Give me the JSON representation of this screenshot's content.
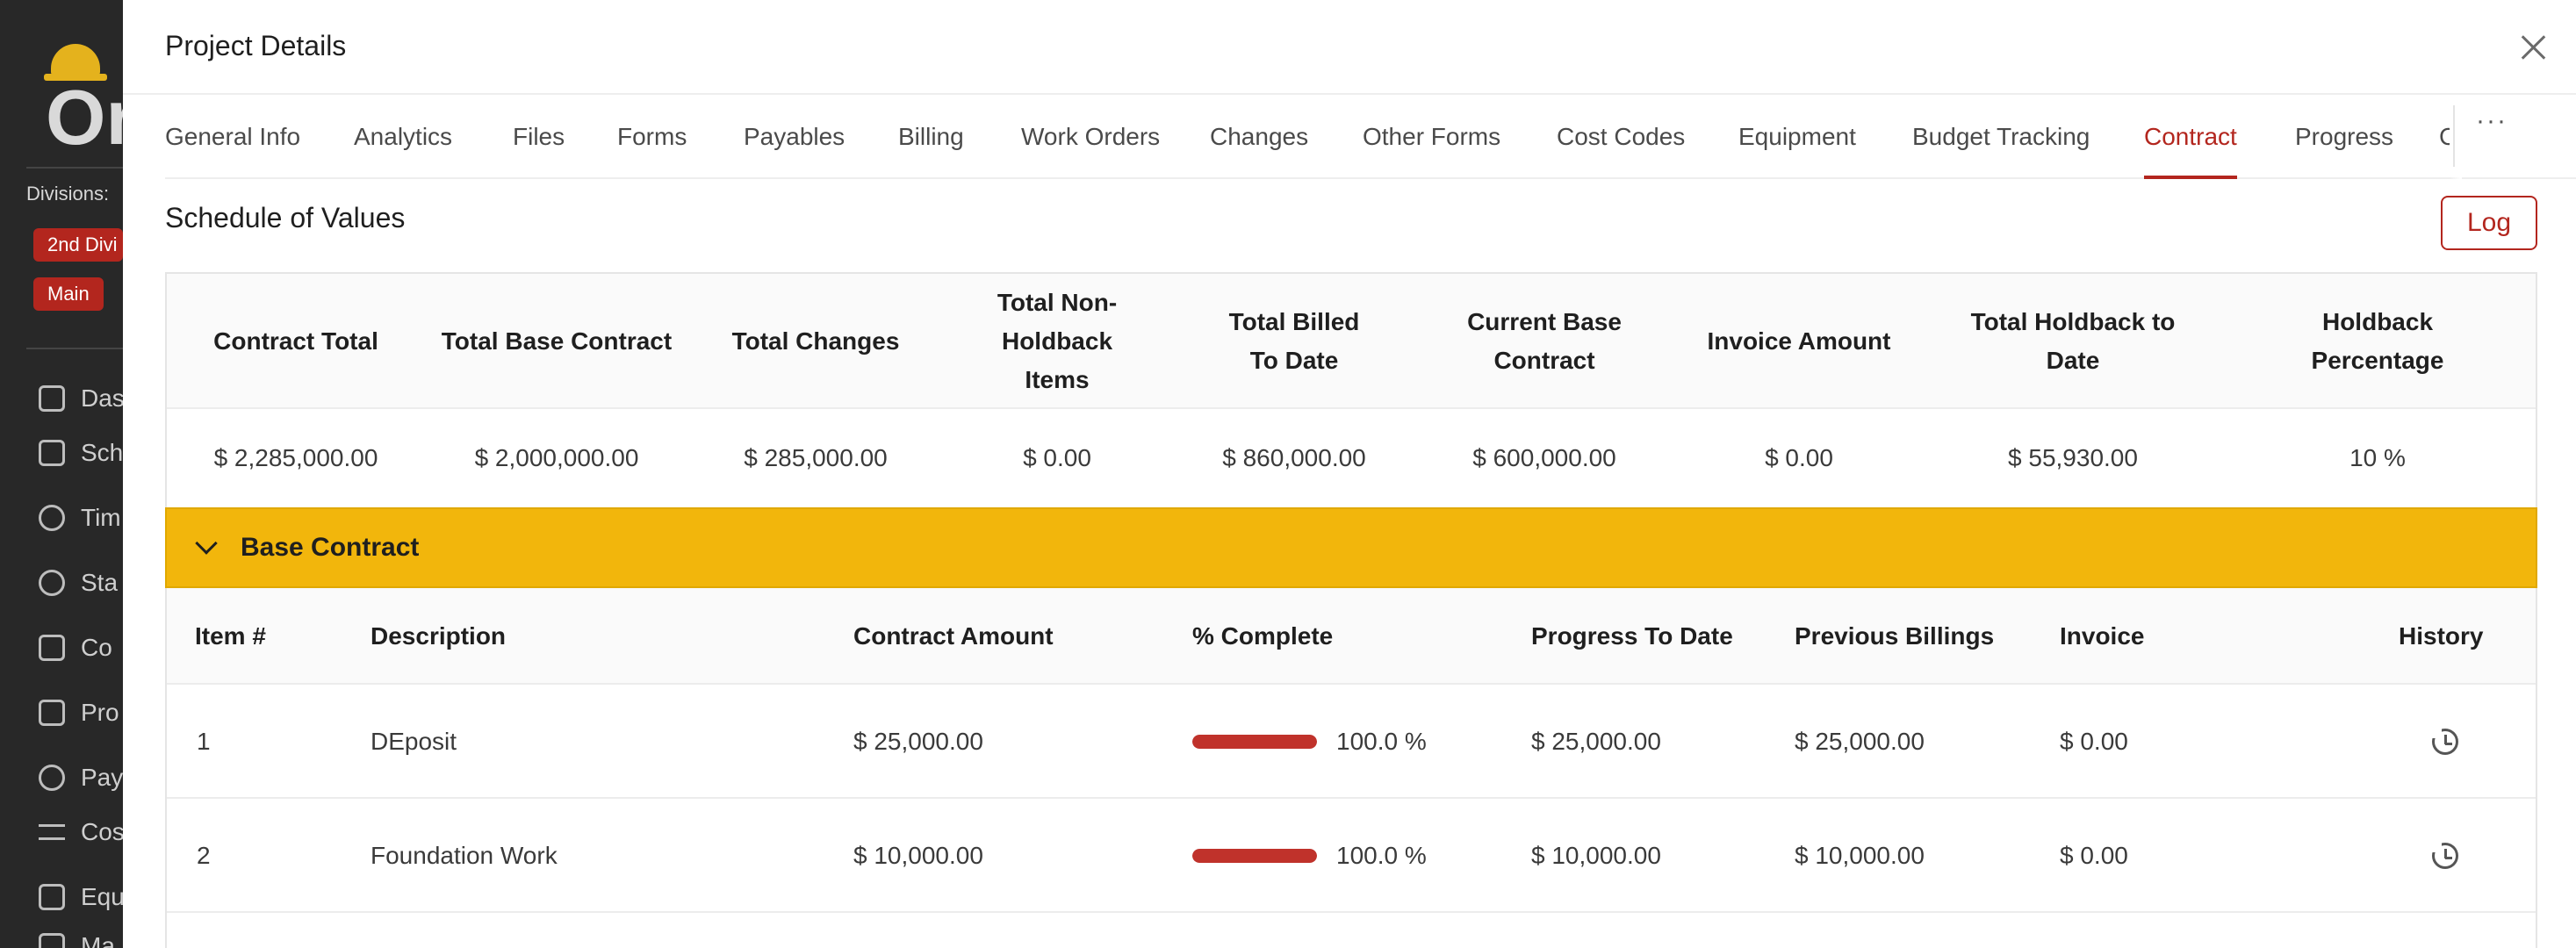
{
  "background_app": {
    "logo_text": "Or",
    "divisions_label": "Divisions:",
    "division_badges": [
      "2nd Divi",
      "Main"
    ],
    "nav_items": [
      "Das",
      "Sch",
      "Tim",
      "Sta",
      "Co",
      "Pro",
      "Pay",
      "Cos",
      "Equ",
      "Ma"
    ]
  },
  "modal": {
    "title": "Project Details"
  },
  "tabs": [
    "General Info",
    "Analytics",
    "Files",
    "Forms",
    "Payables",
    "Billing",
    "Work Orders",
    "Changes",
    "Other Forms",
    "Cost Codes",
    "Equipment",
    "Budget Tracking",
    "Contract",
    "Progress",
    "C"
  ],
  "active_tab": "Contract",
  "section": {
    "title": "Schedule of Values",
    "log_button": "Log"
  },
  "summary": {
    "headers": [
      "Contract Total",
      "Total Base Contract",
      "Total Changes",
      "Total Non-Holdback Items",
      "Total Billed To Date",
      "Current Base Contract",
      "Invoice Amount",
      "Total Holdback to Date",
      "Holdback Percentage"
    ],
    "values": [
      "$ 2,285,000.00",
      "$ 2,000,000.00",
      "$ 285,000.00",
      "$ 0.00",
      "$ 860,000.00",
      "$ 600,000.00",
      "$ 0.00",
      "$ 55,930.00",
      "10 %"
    ]
  },
  "group": {
    "label": "Base Contract"
  },
  "items_table": {
    "headers": {
      "item": "Item #",
      "description": "Description",
      "contract_amount": "Contract Amount",
      "complete": "% Complete",
      "progress": "Progress To Date",
      "previous": "Previous Billings",
      "invoice": "Invoice",
      "history": "History"
    },
    "rows": [
      {
        "item": "1",
        "description": "DEposit",
        "contract_amount": "$ 25,000.00",
        "complete": 1.0,
        "complete_label": "100.0 %",
        "progress": "$ 25,000.00",
        "previous": "$ 25,000.00",
        "invoice": "$ 0.00"
      },
      {
        "item": "2",
        "description": "Foundation Work",
        "contract_amount": "$ 10,000.00",
        "complete": 1.0,
        "complete_label": "100.0 %",
        "progress": "$ 10,000.00",
        "previous": "$ 10,000.00",
        "invoice": "$ 0.00"
      }
    ]
  },
  "colors": {
    "accent": "#b3261e",
    "group_bar": "#f2b60c",
    "progress_fill": "#c0322b"
  }
}
